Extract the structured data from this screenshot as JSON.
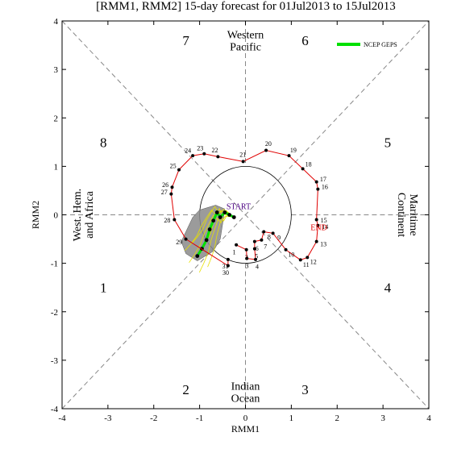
{
  "chart_data": {
    "type": "line",
    "title": "[RMM1, RMM2] 15-day forecast for 01Jul2013 to 15Jul2013",
    "xlabel": "RMM1",
    "ylabel": "RMM2",
    "xlim": [
      -4,
      4
    ],
    "ylim": [
      -4,
      4
    ],
    "xticks": [
      "-4",
      "-3",
      "-2",
      "-1",
      "0",
      "1",
      "2",
      "3",
      "4"
    ],
    "yticks": [
      "-4",
      "-3",
      "-2",
      "-1",
      "0",
      "1",
      "2",
      "3",
      "4"
    ],
    "grid": false,
    "legend_position": "top-right",
    "phase_numbers": [
      {
        "label": "1",
        "x": -3.1,
        "y": -1.5
      },
      {
        "label": "2",
        "x": -1.3,
        "y": -3.6
      },
      {
        "label": "3",
        "x": 1.3,
        "y": -3.6
      },
      {
        "label": "4",
        "x": 3.1,
        "y": -1.5
      },
      {
        "label": "5",
        "x": 3.1,
        "y": 1.5
      },
      {
        "label": "6",
        "x": 1.3,
        "y": 3.6
      },
      {
        "label": "7",
        "x": -1.3,
        "y": 3.6
      },
      {
        "label": "8",
        "x": -3.1,
        "y": 1.5
      }
    ],
    "region_labels": [
      {
        "lines": [
          "Western",
          "Pacific"
        ],
        "x": 0.0,
        "y": 3.6,
        "rotate": 0
      },
      {
        "lines": [
          "Indian",
          "Ocean"
        ],
        "x": 0.0,
        "y": -3.65,
        "rotate": 0
      },
      {
        "lines": [
          "West. Hem.",
          "and Africa"
        ],
        "x": -3.55,
        "y": 0.0,
        "rotate": -90
      },
      {
        "lines": [
          "Maritime",
          "Continent"
        ],
        "x": 3.55,
        "y": 0.0,
        "rotate": 90
      }
    ],
    "observed": {
      "color": "#e00000",
      "points": [
        {
          "label": "1",
          "x": -0.2,
          "y": -0.62
        },
        {
          "label": "2",
          "x": 0.02,
          "y": -0.72
        },
        {
          "label": "3",
          "x": 0.03,
          "y": -0.9
        },
        {
          "label": "4",
          "x": 0.22,
          "y": -0.92
        },
        {
          "label": "5",
          "x": 0.2,
          "y": -0.7
        },
        {
          "label": "6",
          "x": 0.2,
          "y": -0.55
        },
        {
          "label": "7",
          "x": 0.35,
          "y": -0.52
        },
        {
          "label": "8",
          "x": 0.4,
          "y": -0.35
        },
        {
          "label": "9",
          "x": 0.6,
          "y": -0.38
        },
        {
          "label": "10",
          "x": 0.88,
          "y": -0.72
        },
        {
          "label": "11",
          "x": 1.2,
          "y": -0.93
        },
        {
          "label": "12",
          "x": 1.35,
          "y": -0.88
        },
        {
          "label": "13",
          "x": 1.55,
          "y": -0.55
        },
        {
          "label": "14",
          "x": 1.58,
          "y": -0.22
        },
        {
          "label": "15",
          "x": 1.55,
          "y": -0.1
        },
        {
          "label": "16",
          "x": 1.58,
          "y": 0.53
        },
        {
          "label": "17",
          "x": 1.55,
          "y": 0.68
        },
        {
          "label": "18",
          "x": 1.25,
          "y": 0.95
        },
        {
          "label": "19",
          "x": 0.95,
          "y": 1.22
        },
        {
          "label": "20",
          "x": 0.45,
          "y": 1.33
        },
        {
          "label": "21",
          "x": -0.05,
          "y": 1.1
        },
        {
          "label": "22",
          "x": -0.6,
          "y": 1.2
        },
        {
          "label": "23",
          "x": -0.9,
          "y": 1.26
        },
        {
          "label": "24",
          "x": -1.15,
          "y": 1.22
        },
        {
          "label": "25",
          "x": -1.45,
          "y": 0.93
        },
        {
          "label": "26",
          "x": -1.6,
          "y": 0.57
        },
        {
          "label": "27",
          "x": -1.62,
          "y": 0.43
        },
        {
          "label": "28",
          "x": -1.55,
          "y": -0.1
        },
        {
          "label": "29",
          "x": -1.3,
          "y": -0.5
        },
        {
          "label": "30",
          "x": -0.38,
          "y": -1.05
        },
        {
          "label": "31",
          "x": -0.38,
          "y": -0.92
        }
      ]
    },
    "start_label": {
      "text": "START",
      "x": -0.15,
      "y": 0.12
    },
    "end_label": {
      "text": "END",
      "x": 1.6,
      "y": -0.32
    },
    "forecast_shade": [
      {
        "x": -0.45,
        "y": 0.12
      },
      {
        "x": -0.65,
        "y": 0.2
      },
      {
        "x": -1.0,
        "y": 0.1
      },
      {
        "x": -1.15,
        "y": -0.05
      },
      {
        "x": -1.3,
        "y": -0.35
      },
      {
        "x": -1.4,
        "y": -0.55
      },
      {
        "x": -1.3,
        "y": -0.8
      },
      {
        "x": -1.05,
        "y": -0.95
      },
      {
        "x": -0.7,
        "y": -0.75
      },
      {
        "x": -0.55,
        "y": -0.5
      },
      {
        "x": -0.5,
        "y": -0.2
      }
    ],
    "forecast": {
      "name": "NCEP GEPS",
      "color": "#00e000",
      "points": [
        {
          "label": "21",
          "x": -0.25,
          "y": -0.05
        },
        {
          "label": "22",
          "x": -0.35,
          "y": 0.0
        },
        {
          "label": "23",
          "x": -0.45,
          "y": 0.05
        },
        {
          "label": "24",
          "x": -0.55,
          "y": -0.05
        },
        {
          "label": "25",
          "x": -0.62,
          "y": 0.05
        },
        {
          "label": "26",
          "x": -0.7,
          "y": -0.12
        },
        {
          "label": "27",
          "x": -0.78,
          "y": -0.3
        },
        {
          "label": "28",
          "x": -0.85,
          "y": -0.52
        },
        {
          "label": "29",
          "x": -0.95,
          "y": -0.7
        },
        {
          "label": "30",
          "x": -1.05,
          "y": -0.85
        }
      ]
    }
  }
}
